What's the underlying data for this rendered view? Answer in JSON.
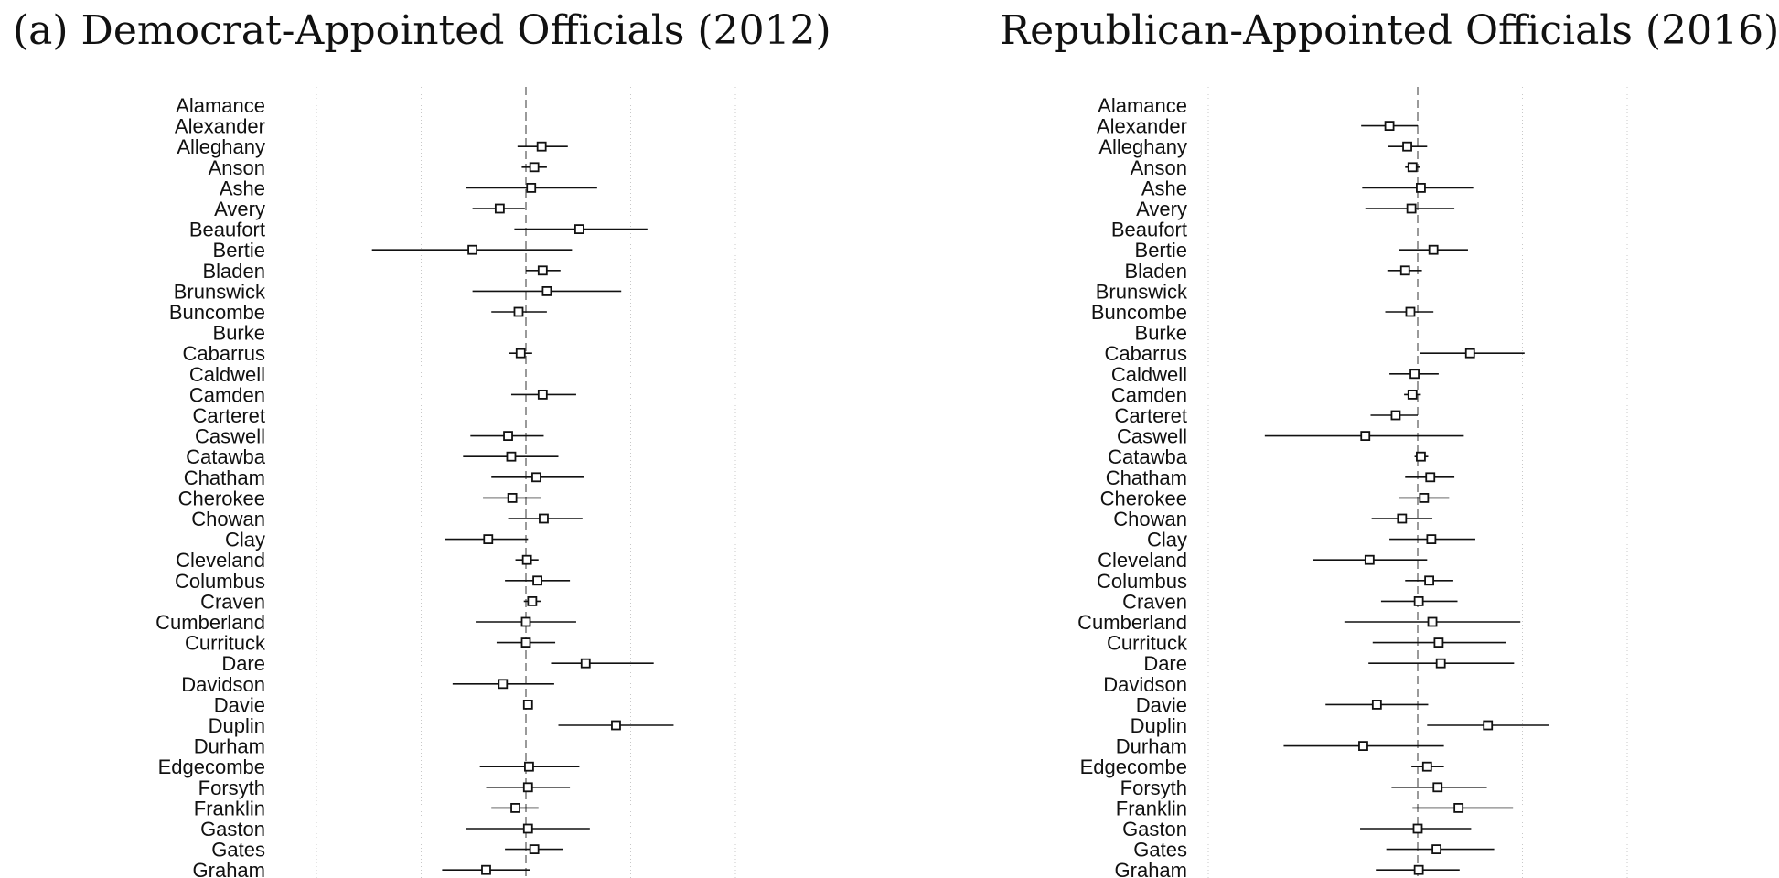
{
  "chart_data": [
    {
      "type": "forest",
      "title": "(a) Democrat-Appointed Officials (2012)",
      "reference_line": 0,
      "grid": "dotted vertical",
      "xlim": [
        -2,
        2
      ],
      "xgrid": [
        -2,
        -1,
        0,
        1,
        2
      ],
      "categories": [
        "Alamance",
        "Alexander",
        "Alleghany",
        "Anson",
        "Ashe",
        "Avery",
        "Beaufort",
        "Bertie",
        "Bladen",
        "Brunswick",
        "Buncombe",
        "Burke",
        "Cabarrus",
        "Caldwell",
        "Camden",
        "Carteret",
        "Caswell",
        "Catawba",
        "Chatham",
        "Cherokee",
        "Chowan",
        "Clay",
        "Cleveland",
        "Columbus",
        "Craven",
        "Cumberland",
        "Currituck",
        "Dare",
        "Davidson",
        "Davie",
        "Duplin",
        "Durham",
        "Edgecombe",
        "Forsyth",
        "Franklin",
        "Gaston",
        "Gates",
        "Graham"
      ],
      "estimates": [
        null,
        null,
        {
          "est": 0.15,
          "lo": -0.08,
          "hi": 0.4
        },
        {
          "est": 0.08,
          "lo": -0.04,
          "hi": 0.2
        },
        {
          "est": 0.05,
          "lo": -0.57,
          "hi": 0.68
        },
        {
          "est": -0.25,
          "lo": -0.51,
          "hi": -0.01
        },
        {
          "est": 0.51,
          "lo": -0.11,
          "hi": 1.16
        },
        {
          "est": -0.51,
          "lo": -1.47,
          "hi": 0.44
        },
        {
          "est": 0.16,
          "lo": 0.0,
          "hi": 0.33
        },
        {
          "est": 0.2,
          "lo": -0.51,
          "hi": 0.91
        },
        {
          "est": -0.07,
          "lo": -0.33,
          "hi": 0.2
        },
        null,
        {
          "est": -0.05,
          "lo": -0.16,
          "hi": 0.06
        },
        null,
        {
          "est": 0.16,
          "lo": -0.14,
          "hi": 0.48
        },
        null,
        {
          "est": -0.17,
          "lo": -0.53,
          "hi": 0.17
        },
        {
          "est": -0.14,
          "lo": -0.6,
          "hi": 0.31
        },
        {
          "est": 0.1,
          "lo": -0.33,
          "hi": 0.55
        },
        {
          "est": -0.13,
          "lo": -0.41,
          "hi": 0.14
        },
        {
          "est": 0.17,
          "lo": -0.17,
          "hi": 0.54
        },
        {
          "est": -0.36,
          "lo": -0.77,
          "hi": 0.02
        },
        {
          "est": 0.01,
          "lo": -0.1,
          "hi": 0.12
        },
        {
          "est": 0.11,
          "lo": -0.2,
          "hi": 0.42
        },
        {
          "est": 0.06,
          "lo": -0.02,
          "hi": 0.14
        },
        {
          "est": 0.0,
          "lo": -0.48,
          "hi": 0.48
        },
        {
          "est": 0.0,
          "lo": -0.28,
          "hi": 0.28
        },
        {
          "est": 0.57,
          "lo": 0.24,
          "hi": 1.22
        },
        {
          "est": -0.22,
          "lo": -0.7,
          "hi": 0.27
        },
        {
          "est": 0.02,
          "lo": 0.02,
          "hi": 0.02
        },
        {
          "est": 0.86,
          "lo": 0.31,
          "hi": 1.41
        },
        null,
        {
          "est": 0.03,
          "lo": -0.44,
          "hi": 0.51
        },
        {
          "est": 0.02,
          "lo": -0.38,
          "hi": 0.42
        },
        {
          "est": -0.1,
          "lo": -0.33,
          "hi": 0.12
        },
        {
          "est": 0.02,
          "lo": -0.57,
          "hi": 0.61
        },
        {
          "est": 0.08,
          "lo": -0.2,
          "hi": 0.35
        },
        {
          "est": -0.38,
          "lo": -0.8,
          "hi": 0.04
        }
      ]
    },
    {
      "type": "forest",
      "title": "Republican-Appointed Officials (2016)",
      "reference_line": 0,
      "grid": "dotted vertical",
      "xlim": [
        -2,
        2
      ],
      "xgrid": [
        -2,
        -1,
        0,
        1,
        2
      ],
      "categories": [
        "Alamance",
        "Alexander",
        "Alleghany",
        "Anson",
        "Ashe",
        "Avery",
        "Beaufort",
        "Bertie",
        "Bladen",
        "Brunswick",
        "Buncombe",
        "Burke",
        "Cabarrus",
        "Caldwell",
        "Camden",
        "Carteret",
        "Caswell",
        "Catawba",
        "Chatham",
        "Cherokee",
        "Chowan",
        "Clay",
        "Cleveland",
        "Columbus",
        "Craven",
        "Cumberland",
        "Currituck",
        "Dare",
        "Davidson",
        "Davie",
        "Duplin",
        "Durham",
        "Edgecombe",
        "Forsyth",
        "Franklin",
        "Gaston",
        "Gates",
        "Graham"
      ],
      "estimates": [
        null,
        {
          "est": -0.27,
          "lo": -0.54,
          "hi": 0.0
        },
        {
          "est": -0.1,
          "lo": -0.28,
          "hi": 0.09
        },
        {
          "est": -0.05,
          "lo": -0.12,
          "hi": 0.02
        },
        {
          "est": 0.03,
          "lo": -0.53,
          "hi": 0.53
        },
        {
          "est": -0.06,
          "lo": -0.5,
          "hi": 0.35
        },
        null,
        {
          "est": 0.15,
          "lo": -0.18,
          "hi": 0.48
        },
        {
          "est": -0.12,
          "lo": -0.29,
          "hi": 0.04
        },
        null,
        {
          "est": -0.07,
          "lo": -0.31,
          "hi": 0.15
        },
        null,
        {
          "est": 0.5,
          "lo": 0.02,
          "hi": 1.02
        },
        {
          "est": -0.03,
          "lo": -0.27,
          "hi": 0.2
        },
        {
          "est": -0.05,
          "lo": -0.13,
          "hi": 0.03
        },
        {
          "est": -0.21,
          "lo": -0.45,
          "hi": 0.0
        },
        {
          "est": -0.5,
          "lo": -1.46,
          "hi": 0.44
        },
        {
          "est": 0.03,
          "lo": -0.03,
          "hi": 0.1
        },
        {
          "est": 0.12,
          "lo": -0.12,
          "hi": 0.35
        },
        {
          "est": 0.06,
          "lo": -0.18,
          "hi": 0.3
        },
        {
          "est": -0.15,
          "lo": -0.44,
          "hi": 0.14
        },
        {
          "est": 0.13,
          "lo": -0.27,
          "hi": 0.55
        },
        {
          "est": -0.46,
          "lo": -1.0,
          "hi": 0.09
        },
        {
          "est": 0.11,
          "lo": -0.12,
          "hi": 0.34
        },
        {
          "est": 0.01,
          "lo": -0.35,
          "hi": 0.38
        },
        {
          "est": 0.14,
          "lo": -0.7,
          "hi": 0.98
        },
        {
          "est": 0.2,
          "lo": -0.43,
          "hi": 0.84
        },
        {
          "est": 0.22,
          "lo": -0.47,
          "hi": 0.92
        },
        null,
        {
          "est": -0.39,
          "lo": -0.88,
          "hi": 0.1
        },
        {
          "est": 0.67,
          "lo": 0.09,
          "hi": 1.25
        },
        {
          "est": -0.52,
          "lo": -1.28,
          "hi": 0.25
        },
        {
          "est": 0.09,
          "lo": -0.06,
          "hi": 0.25
        },
        {
          "est": 0.19,
          "lo": -0.25,
          "hi": 0.66
        },
        {
          "est": 0.39,
          "lo": -0.05,
          "hi": 0.91
        },
        {
          "est": 0.0,
          "lo": -0.55,
          "hi": 0.51
        },
        {
          "est": 0.18,
          "lo": -0.3,
          "hi": 0.73
        },
        {
          "est": 0.01,
          "lo": -0.4,
          "hi": 0.4
        }
      ]
    }
  ]
}
